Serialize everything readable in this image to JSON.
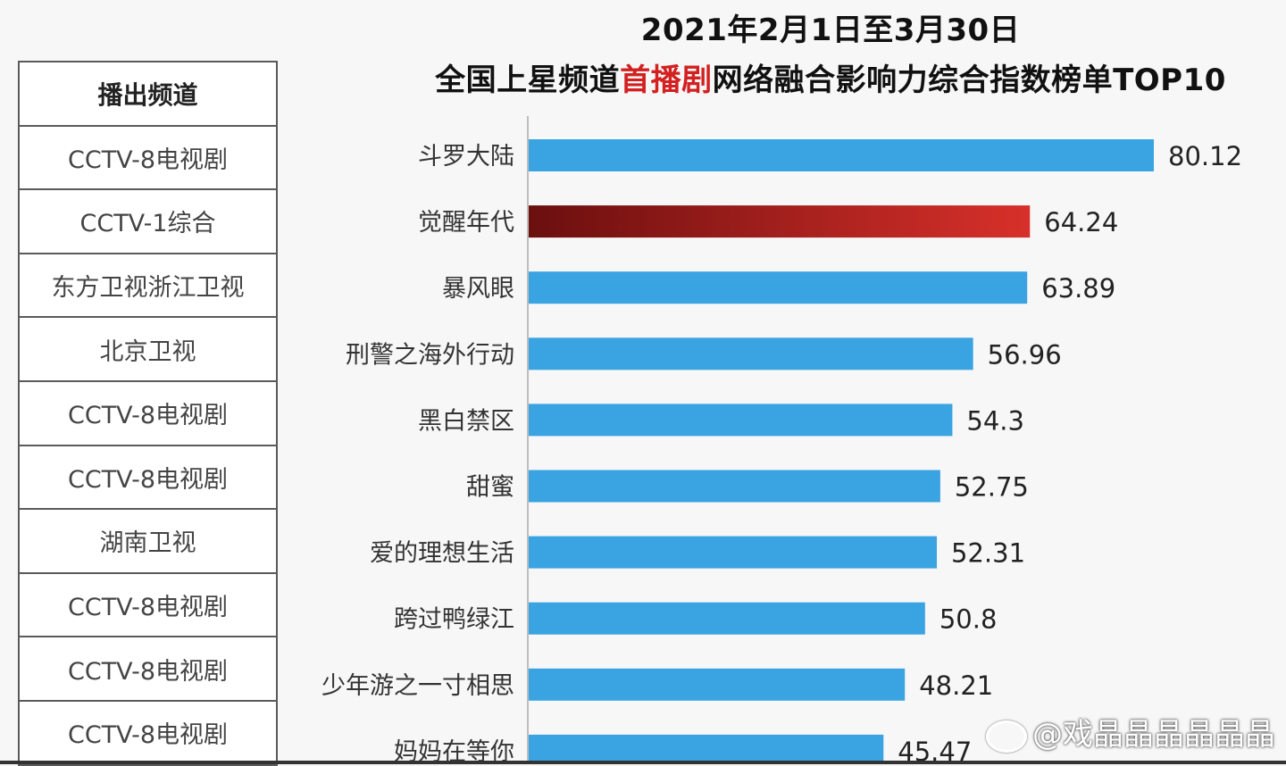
{
  "title": {
    "line1": "2021年2月1日至3月30日",
    "line2_before": "全国上星频道",
    "line2_highlight": "首播剧",
    "line2_after": "网络融合影响力综合指数榜单TOP10"
  },
  "channel_table": {
    "header": "播出频道",
    "rows": [
      "CCTV-8电视剧",
      "CCTV-1综合",
      "东方卫视浙江卫视",
      "北京卫视",
      "CCTV-8电视剧",
      "CCTV-8电视剧",
      "湖南卫视",
      "CCTV-8电视剧",
      "CCTV-8电视剧",
      "CCTV-8电视剧"
    ]
  },
  "chart_data": {
    "type": "bar",
    "orientation": "horizontal",
    "categories": [
      "斗罗大陆",
      "觉醒年代",
      "暴风眼",
      "刑警之海外行动",
      "黑白禁区",
      "甜蜜",
      "爱的理想生活",
      "跨过鸭绿江",
      "少年游之一寸相思",
      "妈妈在等你"
    ],
    "values": [
      80.12,
      64.24,
      63.89,
      56.96,
      54.3,
      52.75,
      52.31,
      50.8,
      48.21,
      45.47
    ],
    "value_labels": [
      "80.12",
      "64.24",
      "63.89",
      "56.96",
      "54.3",
      "52.75",
      "52.31",
      "50.8",
      "48.21",
      "45.47"
    ],
    "highlight_index": 1,
    "xlim": [
      0,
      80.12
    ],
    "colors": {
      "bar": "#3aa3e2",
      "highlight_start": "#6b0f0f",
      "highlight_end": "#d8302a"
    },
    "grid": false,
    "legend": "none"
  },
  "watermark": "@戏晶晶晶晶晶晶"
}
